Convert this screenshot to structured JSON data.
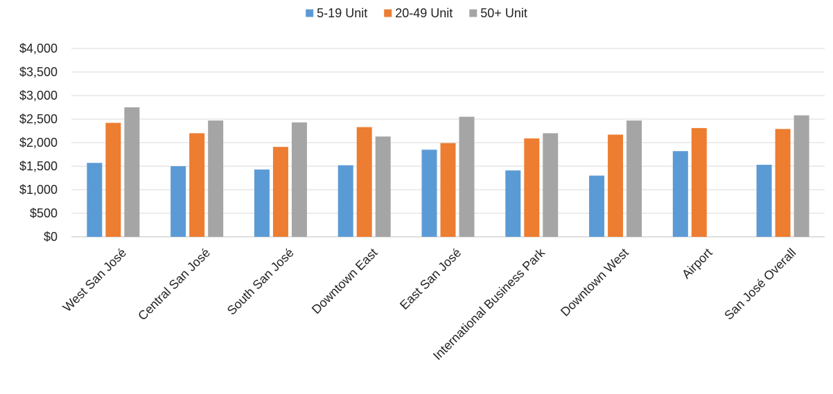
{
  "chart_data": {
    "type": "bar",
    "title": "",
    "xlabel": "",
    "ylabel": "",
    "categories": [
      "West San José",
      "Central San José",
      "South San José",
      "Downtown East",
      "East San José",
      "International Business Park",
      "Downtown West",
      "Airport",
      "San José Overall"
    ],
    "series": [
      {
        "name": "5-19 Unit",
        "color": "#5B9BD5",
        "values": [
          1570,
          1500,
          1430,
          1520,
          1850,
          1410,
          1300,
          1820,
          1530
        ]
      },
      {
        "name": "20-49 Unit",
        "color": "#ED7D31",
        "values": [
          2420,
          2200,
          1910,
          2330,
          1990,
          2090,
          2170,
          2310,
          2290
        ]
      },
      {
        "name": "50+ Unit",
        "color": "#A5A5A5",
        "values": [
          2750,
          2470,
          2430,
          2130,
          2550,
          2200,
          2470,
          null,
          2580
        ]
      }
    ],
    "ylim": [
      0,
      4000
    ],
    "yticks": [
      "$0",
      "$500",
      "$1,000",
      "$1,500",
      "$2,000",
      "$2,500",
      "$3,000",
      "$3,500",
      "$4,000"
    ],
    "ytick_values": [
      0,
      500,
      1000,
      1500,
      2000,
      2500,
      3000,
      3500,
      4000
    ],
    "grid": true,
    "legend_position": "top-center"
  }
}
